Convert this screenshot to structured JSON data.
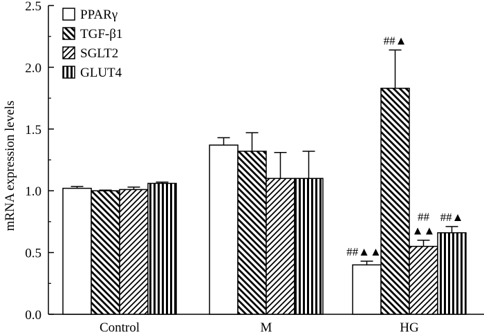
{
  "chart_data": {
    "type": "bar",
    "title": "",
    "xlabel": "",
    "ylabel": "mRNA expression levels",
    "ylim": [
      0,
      2.5
    ],
    "yticks": [
      "0.0",
      "0.5",
      "1.0",
      "1.5",
      "2.0",
      "2.5"
    ],
    "grid": false,
    "legend_position": "top-left",
    "categories": [
      "Control",
      "M",
      "HG"
    ],
    "series": [
      {
        "name": "PPARγ",
        "pattern": "empty",
        "values": [
          1.02,
          1.37,
          0.4
        ],
        "errors": [
          0.015,
          0.06,
          0.03
        ],
        "annotations": [
          "",
          "",
          "##▲▲"
        ]
      },
      {
        "name": "TGF-β1",
        "pattern": "backslash",
        "values": [
          1.0,
          1.32,
          1.83
        ],
        "errors": [
          0.005,
          0.15,
          0.31
        ],
        "annotations": [
          "",
          "",
          "##▲"
        ]
      },
      {
        "name": "SGLT2",
        "pattern": "slash",
        "values": [
          1.01,
          1.1,
          0.55
        ],
        "errors": [
          0.02,
          0.21,
          0.05
        ],
        "annotations": [
          "",
          "",
          "##\n▲▲"
        ]
      },
      {
        "name": "GLUT4",
        "pattern": "vertical",
        "values": [
          1.06,
          1.1,
          0.66
        ],
        "errors": [
          0.01,
          0.22,
          0.05
        ],
        "annotations": [
          "",
          "",
          "##▲"
        ]
      }
    ]
  }
}
